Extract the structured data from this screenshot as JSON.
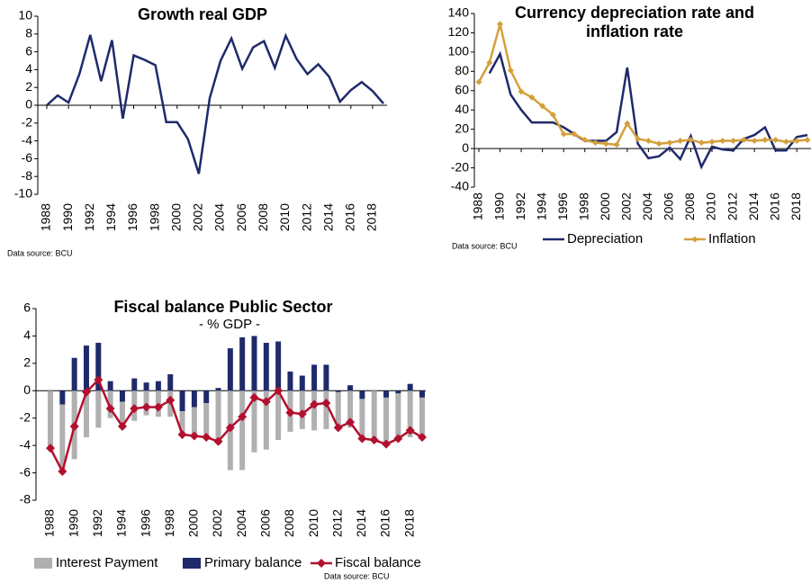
{
  "chart_data": [
    {
      "type": "line",
      "title": "Growth real GDP",
      "source": "Data source: BCU",
      "x": [
        1988,
        1989,
        1990,
        1991,
        1992,
        1993,
        1994,
        1995,
        1996,
        1997,
        1998,
        1999,
        2000,
        2001,
        2002,
        2003,
        2004,
        2005,
        2006,
        2007,
        2008,
        2009,
        2010,
        2011,
        2012,
        2013,
        2014,
        2015,
        2016,
        2017,
        2018,
        2019
      ],
      "series": [
        {
          "name": null,
          "color": "#1f2a6b",
          "kind": "line",
          "values": [
            0,
            1.1,
            0.3,
            3.5,
            7.9,
            2.7,
            7.3,
            -1.5,
            5.6,
            5.1,
            4.5,
            -1.9,
            -1.9,
            -3.8,
            -7.7,
            0.8,
            5.0,
            7.5,
            4.1,
            6.5,
            7.2,
            4.2,
            7.8,
            5.2,
            3.5,
            4.6,
            3.2,
            0.4,
            1.7,
            2.6,
            1.6,
            0.2
          ]
        }
      ],
      "xlim": [
        1988,
        2019
      ],
      "xticks": [
        1988,
        1990,
        1992,
        1994,
        1996,
        1998,
        2000,
        2002,
        2004,
        2006,
        2008,
        2010,
        2012,
        2014,
        2016,
        2018
      ],
      "ylim": [
        -10,
        10
      ],
      "yticks": [
        -10,
        -8,
        -6,
        -4,
        -2,
        0,
        2,
        4,
        6,
        8,
        10
      ]
    },
    {
      "type": "line",
      "title": "Currency depreciation rate and inflation rate",
      "source": "Data source: BCU",
      "legend": "bottom",
      "x": [
        1988,
        1989,
        1990,
        1991,
        1992,
        1993,
        1994,
        1995,
        1996,
        1997,
        1998,
        1999,
        2000,
        2001,
        2002,
        2003,
        2004,
        2005,
        2006,
        2007,
        2008,
        2009,
        2010,
        2011,
        2012,
        2013,
        2014,
        2015,
        2016,
        2017,
        2018,
        2019
      ],
      "series": [
        {
          "name": "Depreciation",
          "color": "#1f2a6b",
          "kind": "line",
          "values": [
            null,
            78,
            98,
            56,
            40,
            27,
            27,
            27,
            22,
            15,
            8,
            8,
            8,
            17,
            84,
            5,
            -10,
            -8,
            1,
            -11,
            13,
            -19,
            2,
            -1,
            -2,
            10,
            14,
            22,
            -2,
            -2,
            12,
            14
          ]
        },
        {
          "name": "Inflation",
          "color": "#d4a03c",
          "kind": "line",
          "marker": "diamond",
          "values": [
            69,
            89,
            129,
            81,
            59,
            53,
            44,
            35,
            15,
            15,
            9,
            6,
            5,
            4,
            26,
            10,
            8,
            5,
            6,
            8,
            9,
            6,
            7,
            8,
            8,
            9,
            8,
            9,
            9,
            7,
            8,
            9
          ]
        }
      ],
      "xlim": [
        1988,
        2019
      ],
      "xticks": [
        1988,
        1990,
        1992,
        1994,
        1996,
        1998,
        2000,
        2002,
        2004,
        2006,
        2008,
        2010,
        2012,
        2014,
        2016,
        2018
      ],
      "ylim": [
        -40,
        140
      ],
      "yticks": [
        -40,
        -20,
        0,
        20,
        40,
        60,
        80,
        100,
        120,
        140
      ]
    },
    {
      "type": "combo",
      "title": "Fiscal balance Public Sector",
      "subtitle": "- % GDP -",
      "source": "Data source: BCU",
      "legend": "bottom",
      "x": [
        1988,
        1989,
        1990,
        1991,
        1992,
        1993,
        1994,
        1995,
        1996,
        1997,
        1998,
        1999,
        2000,
        2001,
        2002,
        2003,
        2004,
        2005,
        2006,
        2007,
        2008,
        2009,
        2010,
        2011,
        2012,
        2013,
        2014,
        2015,
        2016,
        2017,
        2018,
        2019
      ],
      "series": [
        {
          "name": "Interest Payment",
          "color": "#b0b0b0",
          "kind": "bar",
          "values": [
            -4.2,
            -4.9,
            -5.0,
            -3.4,
            -2.7,
            -2.0,
            -1.8,
            -2.2,
            -1.8,
            -1.9,
            -1.9,
            -1.7,
            -2.1,
            -2.5,
            -3.9,
            -5.8,
            -5.8,
            -4.5,
            -4.3,
            -3.6,
            -3.0,
            -2.8,
            -2.9,
            -2.8,
            -2.6,
            -2.7,
            -2.9,
            -3.6,
            -3.4,
            -3.3,
            -3.4,
            -2.9
          ]
        },
        {
          "name": "Primary balance",
          "color": "#1f2a6b",
          "kind": "bar",
          "values": [
            0,
            -1.0,
            2.4,
            3.3,
            3.5,
            0.7,
            -0.8,
            0.9,
            0.6,
            0.7,
            1.2,
            -1.5,
            -1.2,
            -0.9,
            0.2,
            3.1,
            3.9,
            4.0,
            3.5,
            3.6,
            1.4,
            1.1,
            1.9,
            1.9,
            -0.1,
            0.4,
            -0.6,
            0,
            -0.5,
            -0.2,
            0.5,
            -0.5
          ]
        },
        {
          "name": "Fiscal balance",
          "color": "#b2102f",
          "kind": "line",
          "marker": "diamond",
          "values": [
            -4.2,
            -5.9,
            -2.6,
            -0.1,
            0.8,
            -1.3,
            -2.6,
            -1.3,
            -1.2,
            -1.2,
            -0.7,
            -3.2,
            -3.3,
            -3.4,
            -3.7,
            -2.7,
            -1.9,
            -0.5,
            -0.8,
            0.0,
            -1.6,
            -1.7,
            -1.0,
            -0.9,
            -2.7,
            -2.3,
            -3.5,
            -3.6,
            -3.9,
            -3.5,
            -2.9,
            -3.4
          ]
        }
      ],
      "xlim": [
        1988,
        2019
      ],
      "xticks": [
        1988,
        1990,
        1992,
        1994,
        1996,
        1998,
        2000,
        2002,
        2004,
        2006,
        2008,
        2010,
        2012,
        2014,
        2016,
        2018
      ],
      "ylim": [
        -8,
        6
      ],
      "yticks": [
        -8,
        -6,
        -4,
        -2,
        0,
        2,
        4,
        6
      ]
    }
  ]
}
